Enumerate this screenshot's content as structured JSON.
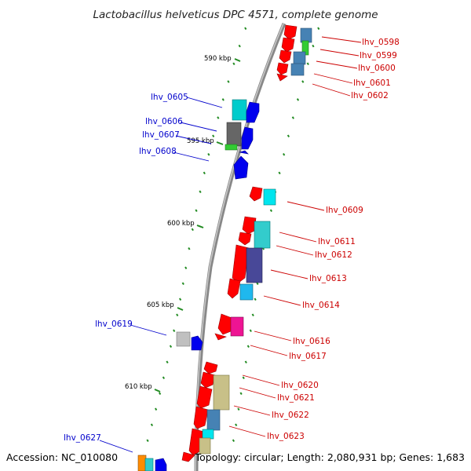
{
  "title": "Lactobacillus helveticus DPC 4571, complete genome",
  "accession": "Accession: NC_010080",
  "summary": "Topology: circular; Length: 2,080,931 bp; Genes: 1,683",
  "colors": {
    "plus_strand_label": "#0000cc",
    "minus_strand_label": "#cc0000",
    "tick_marks": "#228b22",
    "backbone": "#888888"
  },
  "kbp_labels": [
    "590 kbp",
    "595 kbp",
    "600 kbp",
    "605 kbp",
    "610 kbp"
  ],
  "gene_labels": {
    "left": [
      "lhv_0605",
      "lhv_0606",
      "lhv_0607",
      "lhv_0608",
      "lhv_0619",
      "lhv_0627"
    ],
    "right": [
      "lhv_0598",
      "lhv_0599",
      "lhv_0600",
      "lhv_0601",
      "lhv_0602",
      "lhv_0609",
      "lhv_0611",
      "lhv_0612",
      "lhv_0613",
      "lhv_0614",
      "lhv_0616",
      "lhv_0617",
      "lhv_0620",
      "lhv_0621",
      "lhv_0622",
      "lhv_0623"
    ]
  }
}
